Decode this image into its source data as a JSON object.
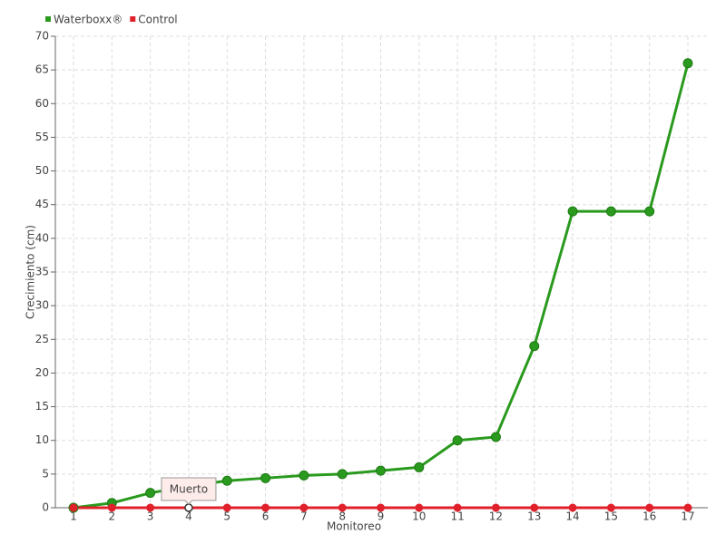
{
  "chart_data": {
    "type": "line",
    "x_label": "Monitoreo",
    "y_label": "Crecimiento (cm)",
    "categories": [
      "1",
      "2",
      "3",
      "4",
      "5",
      "6",
      "7",
      "8",
      "9",
      "10",
      "11",
      "12",
      "13",
      "14",
      "15",
      "16",
      "17"
    ],
    "series": [
      {
        "name": "Waterboxx®",
        "color": "#2a9a1e",
        "values": [
          0,
          0.7,
          2.2,
          3.2,
          4,
          4.4,
          4.8,
          5,
          5.5,
          6,
          10,
          10.5,
          24,
          44,
          44,
          44,
          66
        ]
      },
      {
        "name": "Control",
        "color": "#e0202a",
        "values": [
          0,
          0,
          0,
          0,
          0,
          0,
          0,
          0,
          0,
          0,
          0,
          0,
          0,
          0,
          0,
          0,
          0
        ]
      }
    ],
    "ylim": [
      0,
      70
    ],
    "yticks": [
      0,
      5,
      10,
      15,
      20,
      25,
      30,
      35,
      40,
      45,
      50,
      55,
      60,
      65,
      70
    ],
    "grid": true,
    "legend": "top-left",
    "annotation": "Muerto"
  }
}
